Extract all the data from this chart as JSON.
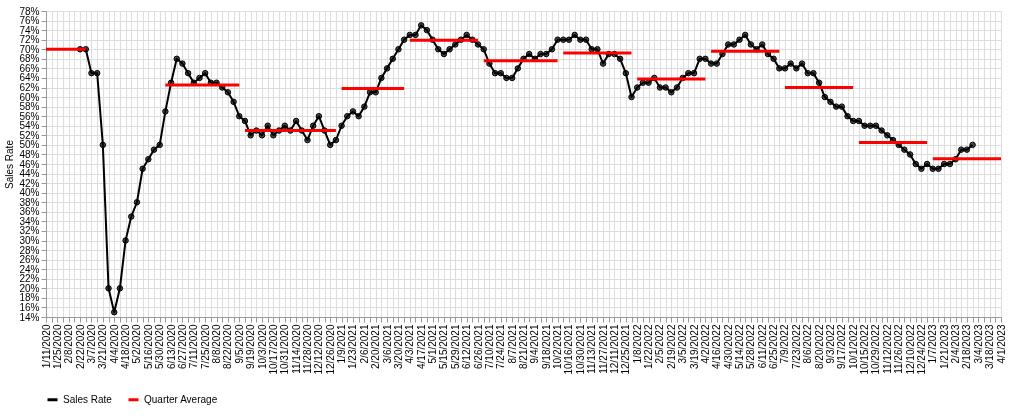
{
  "chart_data": {
    "type": "line",
    "ylabel": "Sales Rate",
    "categories": [
      "1/11/2020",
      null,
      "1/25/2020",
      null,
      "2/8/2020",
      null,
      "2/22/2020",
      null,
      "3/7/2020",
      null,
      "3/21/2020",
      null,
      "4/4/2020",
      null,
      "4/18/2020",
      null,
      "5/2/2020",
      null,
      "5/16/2020",
      null,
      "5/30/2020",
      null,
      "6/13/2020",
      null,
      "6/27/2020",
      null,
      "7/11/2020",
      null,
      "7/25/2020",
      null,
      "8/8/2020",
      null,
      "8/22/2020",
      null,
      "9/5/2020",
      null,
      "9/19/2020",
      null,
      "10/3/2020",
      null,
      "10/17/2020",
      null,
      "10/31/2020",
      null,
      "11/14/2020",
      null,
      "11/28/2020",
      null,
      "12/12/2020",
      null,
      "12/26/2020",
      null,
      "1/9/2021",
      null,
      "1/23/2021",
      null,
      "2/6/2021",
      null,
      "2/20/2021",
      null,
      "3/6/2021",
      null,
      "3/20/2021",
      null,
      "4/3/2021",
      null,
      "4/17/2021",
      null,
      "5/1/2021",
      null,
      "5/15/2021",
      null,
      "5/29/2021",
      null,
      "6/12/2021",
      null,
      "6/26/2021",
      null,
      "7/10/2021",
      null,
      "7/24/2021",
      null,
      "8/7/2021",
      null,
      "8/21/2021",
      null,
      "9/4/2021",
      null,
      "9/18/2021",
      null,
      "10/2/2021",
      null,
      "10/16/2021",
      null,
      "10/30/2021",
      null,
      "11/13/2021",
      null,
      "11/27/2021",
      null,
      "12/11/2021",
      null,
      "12/25/2021",
      null,
      "1/8/2022",
      null,
      "1/22/2022",
      null,
      "2/5/2022",
      null,
      "2/19/2022",
      null,
      "3/5/2022",
      null,
      "3/19/2022",
      null,
      "4/2/2022",
      null,
      "4/16/2022",
      null,
      "4/30/2022",
      null,
      "5/14/2022",
      null,
      "5/28/2022",
      null,
      "6/11/2022",
      null,
      "6/25/2022",
      null,
      "7/9/2022",
      null,
      "7/23/2022",
      null,
      "8/6/2022",
      null,
      "8/20/2022",
      null,
      "9/3/2022",
      null,
      "9/17/2022",
      null,
      "10/1/2022",
      null,
      "10/15/2022",
      null,
      "10/29/2022",
      null,
      "11/12/2022",
      null,
      "11/26/2022",
      null,
      "12/10/2022",
      null,
      "12/24/2022",
      null,
      "1/7/2023",
      null,
      "1/21/2023",
      null,
      "2/4/2023",
      null,
      "2/18/2023",
      null,
      "3/4/2023",
      null,
      "3/18/2023",
      null,
      "4/1/2023"
    ],
    "series": [
      {
        "name": "Sales Rate",
        "marker": "circle",
        "color": "#000000",
        "values": [
          null,
          null,
          null,
          null,
          null,
          null,
          70,
          70,
          65,
          65,
          50,
          20,
          15,
          20,
          30,
          35,
          38,
          45,
          47,
          49,
          50,
          57,
          63,
          68,
          67,
          65,
          63,
          64,
          65,
          63,
          63,
          62,
          61,
          59,
          56,
          55,
          52,
          53,
          52,
          54,
          52,
          53,
          54,
          53,
          55,
          53,
          51,
          54,
          56,
          53,
          50,
          51,
          54,
          56,
          57,
          56,
          58,
          61,
          61,
          64,
          66,
          68,
          70,
          72,
          73,
          73,
          75,
          74,
          72,
          70,
          69,
          70,
          71,
          72,
          73,
          72,
          71,
          70,
          67,
          65,
          65,
          64,
          64,
          66,
          68,
          69,
          68,
          69,
          69,
          70,
          72,
          72,
          72,
          73,
          72,
          72,
          70,
          70,
          67,
          69,
          69,
          68,
          65,
          60,
          62,
          63,
          63,
          64,
          62,
          62,
          61,
          62,
          64,
          65,
          65,
          68,
          68,
          67,
          67,
          69,
          71,
          71,
          72,
          73,
          71,
          70,
          71,
          69,
          68,
          66,
          66,
          67,
          66,
          67,
          65,
          65,
          63,
          60,
          59,
          58,
          58,
          56,
          55,
          55,
          54,
          54,
          54,
          53,
          52,
          51,
          50,
          49,
          48,
          46,
          45,
          46,
          45,
          45,
          46,
          46,
          47,
          49,
          49,
          50,
          null,
          null,
          null,
          null,
          null
        ]
      },
      {
        "name": "Quarter Average",
        "marker": "none",
        "color": "#ff0000",
        "values": [
          70,
          70,
          70,
          70,
          70,
          70,
          70,
          70,
          null,
          null,
          null,
          null,
          null,
          null,
          null,
          null,
          null,
          null,
          null,
          null,
          null,
          62.5,
          62.5,
          62.5,
          62.5,
          62.5,
          62.5,
          62.5,
          62.5,
          62.5,
          62.5,
          62.5,
          62.5,
          62.5,
          62.5,
          53,
          53,
          53,
          53,
          53,
          53,
          53,
          53,
          53,
          53,
          53,
          53,
          53,
          53,
          53,
          53,
          53,
          61.8,
          61.8,
          61.8,
          61.8,
          61.8,
          61.8,
          61.8,
          61.8,
          61.8,
          61.8,
          61.8,
          61.8,
          71.9,
          71.9,
          71.9,
          71.9,
          71.9,
          71.9,
          71.9,
          71.9,
          71.9,
          71.9,
          71.9,
          71.9,
          71.9,
          67.6,
          67.6,
          67.6,
          67.6,
          67.6,
          67.6,
          67.6,
          67.6,
          67.6,
          67.6,
          67.6,
          67.6,
          67.6,
          67.6,
          69.2,
          69.2,
          69.2,
          69.2,
          69.2,
          69.2,
          69.2,
          69.2,
          69.2,
          69.2,
          69.2,
          69.2,
          69.2,
          63.8,
          63.8,
          63.8,
          63.8,
          63.8,
          63.8,
          63.8,
          63.8,
          63.8,
          63.8,
          63.8,
          63.8,
          63.8,
          69.6,
          69.6,
          69.6,
          69.6,
          69.6,
          69.6,
          69.6,
          69.6,
          69.6,
          69.6,
          69.6,
          69.6,
          69.6,
          62,
          62,
          62,
          62,
          62,
          62,
          62,
          62,
          62,
          62,
          62,
          62,
          62,
          50.5,
          50.5,
          50.5,
          50.5,
          50.5,
          50.5,
          50.5,
          50.5,
          50.5,
          50.5,
          50.5,
          50.5,
          50.5,
          47.1,
          47.1,
          47.1,
          47.1,
          47.1,
          47.1,
          47.1,
          47.1,
          47.1,
          47.1,
          47.1,
          47.1,
          47.1
        ]
      }
    ],
    "ylim": [
      14,
      78
    ],
    "yticks": [
      {
        "value": 14,
        "label": "14%"
      },
      {
        "value": 16,
        "label": "16%"
      },
      {
        "value": 18,
        "label": "18%"
      },
      {
        "value": 20,
        "label": "20%"
      },
      {
        "value": 22,
        "label": "22%"
      },
      {
        "value": 24,
        "label": "24%"
      },
      {
        "value": 26,
        "label": "26%"
      },
      {
        "value": 28,
        "label": "28%"
      },
      {
        "value": 30,
        "label": "30%"
      },
      {
        "value": 32,
        "label": "32%"
      },
      {
        "value": 34,
        "label": "34%"
      },
      {
        "value": 36,
        "label": "36%"
      },
      {
        "value": 38,
        "label": "38%"
      },
      {
        "value": 40,
        "label": "40%"
      },
      {
        "value": 42,
        "label": "42%"
      },
      {
        "value": 44,
        "label": "44%"
      },
      {
        "value": 46,
        "label": "46%"
      },
      {
        "value": 48,
        "label": "48%"
      },
      {
        "value": 50,
        "label": "50%"
      },
      {
        "value": 52,
        "label": "52%"
      },
      {
        "value": 54,
        "label": "54%"
      },
      {
        "value": 56,
        "label": "56%"
      },
      {
        "value": 58,
        "label": "58%"
      },
      {
        "value": 60,
        "label": "60%"
      },
      {
        "value": 62,
        "label": "62%"
      },
      {
        "value": 64,
        "label": "64%"
      },
      {
        "value": 66,
        "label": "66%"
      },
      {
        "value": 68,
        "label": "68%"
      },
      {
        "value": 70,
        "label": "70%"
      },
      {
        "value": 72,
        "label": "72%"
      },
      {
        "value": 74,
        "label": "74%"
      },
      {
        "value": 76,
        "label": "76%"
      },
      {
        "value": 78,
        "label": "78%"
      }
    ],
    "grid": true,
    "legend": "bottom"
  }
}
